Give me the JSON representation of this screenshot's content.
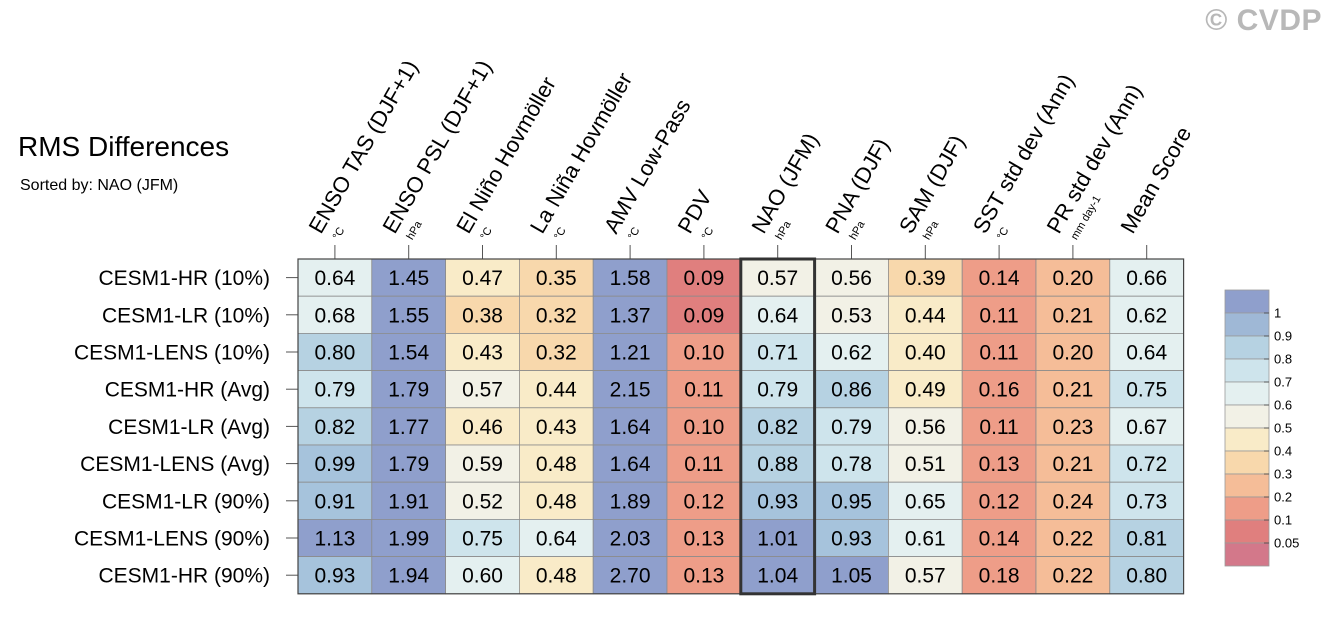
{
  "watermark": "© CVDP",
  "chart_data": {
    "type": "heatmap",
    "title": "RMS Differences",
    "subtitle": "Sorted by: NAO (JFM)",
    "columns": [
      {
        "label": "ENSO TAS (DJF+1)",
        "unit": "°C"
      },
      {
        "label": "ENSO PSL (DJF+1)",
        "unit": "hPa"
      },
      {
        "label": "El Niño Hovmöller",
        "unit": "°C"
      },
      {
        "label": "La Niña Hovmöller",
        "unit": "°C"
      },
      {
        "label": "AMV Low-Pass",
        "unit": "°C"
      },
      {
        "label": "PDV",
        "unit": "°C"
      },
      {
        "label": "NAO (JFM)",
        "unit": "hPa"
      },
      {
        "label": "PNA (DJF)",
        "unit": "hPa"
      },
      {
        "label": "SAM (DJF)",
        "unit": "hPa"
      },
      {
        "label": "SST std dev (Ann)",
        "unit": "°C"
      },
      {
        "label": "PR std dev (Ann)",
        "unit": "mm day-1"
      },
      {
        "label": "Mean Score",
        "unit": ""
      }
    ],
    "rows": [
      "CESM1-HR (10%)",
      "CESM1-LR (10%)",
      "CESM1-LENS (10%)",
      "CESM1-HR (Avg)",
      "CESM1-LR (Avg)",
      "CESM1-LENS (Avg)",
      "CESM1-LR (90%)",
      "CESM1-LENS (90%)",
      "CESM1-HR (90%)"
    ],
    "values": [
      [
        "0.64",
        "1.45",
        "0.47",
        "0.35",
        "1.58",
        "0.09",
        "0.57",
        "0.56",
        "0.39",
        "0.14",
        "0.20",
        "0.66"
      ],
      [
        "0.68",
        "1.55",
        "0.38",
        "0.32",
        "1.37",
        "0.09",
        "0.64",
        "0.53",
        "0.44",
        "0.11",
        "0.21",
        "0.62"
      ],
      [
        "0.80",
        "1.54",
        "0.43",
        "0.32",
        "1.21",
        "0.10",
        "0.71",
        "0.62",
        "0.40",
        "0.11",
        "0.20",
        "0.64"
      ],
      [
        "0.79",
        "1.79",
        "0.57",
        "0.44",
        "2.15",
        "0.11",
        "0.79",
        "0.86",
        "0.49",
        "0.16",
        "0.21",
        "0.75"
      ],
      [
        "0.82",
        "1.77",
        "0.46",
        "0.43",
        "1.64",
        "0.10",
        "0.82",
        "0.79",
        "0.56",
        "0.11",
        "0.23",
        "0.67"
      ],
      [
        "0.99",
        "1.79",
        "0.59",
        "0.48",
        "1.64",
        "0.11",
        "0.88",
        "0.78",
        "0.51",
        "0.13",
        "0.21",
        "0.72"
      ],
      [
        "0.91",
        "1.91",
        "0.52",
        "0.48",
        "1.89",
        "0.12",
        "0.93",
        "0.95",
        "0.65",
        "0.12",
        "0.24",
        "0.73"
      ],
      [
        "1.13",
        "1.99",
        "0.75",
        "0.64",
        "2.03",
        "0.13",
        "1.01",
        "0.93",
        "0.61",
        "0.14",
        "0.22",
        "0.81"
      ],
      [
        "0.93",
        "1.94",
        "0.60",
        "0.48",
        "2.70",
        "0.13",
        "1.04",
        "1.05",
        "0.57",
        "0.18",
        "0.22",
        "0.80"
      ]
    ],
    "highlighted_column": "NAO (JFM)",
    "legend": {
      "placement": "right",
      "labels": [
        "1",
        "0.9",
        "0.8",
        "0.7",
        "0.6",
        "0.5",
        "0.4",
        "0.3",
        "0.2",
        "0.1",
        "0.05"
      ],
      "colors": [
        "#8f9fcc",
        "#9fb8d6",
        "#b6d2e2",
        "#cee4ec",
        "#e4f0f0",
        "#f2f1e6",
        "#f9ebc8",
        "#f8d8ac",
        "#f5bd98",
        "#ee9d88",
        "#e07f7e",
        "#d3788a"
      ]
    }
  }
}
